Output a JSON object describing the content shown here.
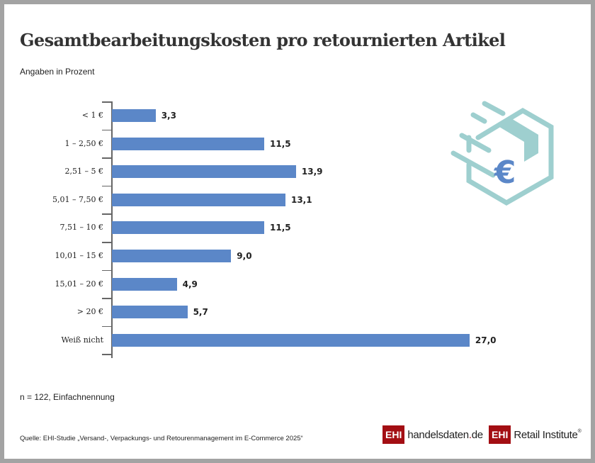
{
  "header": {
    "title": "Gesamtbearbeitungskosten pro retournierten Artikel",
    "subtitle": "Angaben in Prozent"
  },
  "chart_data": {
    "type": "bar",
    "orientation": "horizontal",
    "title": "Gesamtbearbeitungskosten pro retournierten Artikel",
    "subtitle": "Angaben in Prozent",
    "xlabel": "",
    "ylabel": "",
    "categories": [
      "< 1 €",
      "1 – 2,50 €",
      "2,51 – 5 €",
      "5,01 – 7,50 €",
      "7,51 – 10 €",
      "10,01 – 15 €",
      "15,01 – 20 €",
      "> 20 €",
      "Weiß nicht"
    ],
    "values": [
      3.3,
      11.5,
      13.9,
      13.1,
      11.5,
      9.0,
      4.9,
      5.7,
      27.0
    ],
    "value_labels": [
      "3,3",
      "11,5",
      "13,9",
      "13,1",
      "11,5",
      "9,0",
      "4,9",
      "5,7",
      "27,0"
    ],
    "bar_color": "#5b87c8",
    "grid": false,
    "legend": null
  },
  "footer": {
    "note": "n = 122, Einfachnennung",
    "source": "Quelle: EHI-Studie „Versand-, Verpackungs- und Retourenmanagement im E-Commerce 2025“"
  },
  "logos": {
    "logo1_box": "EHI",
    "logo1_text_a": "handelsdaten",
    "logo1_dot": ".",
    "logo1_text_b": "de",
    "logo2_box": "EHI",
    "logo2_text": "Retail Institute",
    "logo2_reg": "®"
  },
  "icon": {
    "name": "euro-package-icon",
    "glyph": "€",
    "outline_color": "#9ecfcf",
    "glyph_color": "#5b87c8"
  },
  "colors": {
    "brand_red": "#a30e13",
    "bar": "#5b87c8",
    "frame": "#a3a3a3"
  }
}
